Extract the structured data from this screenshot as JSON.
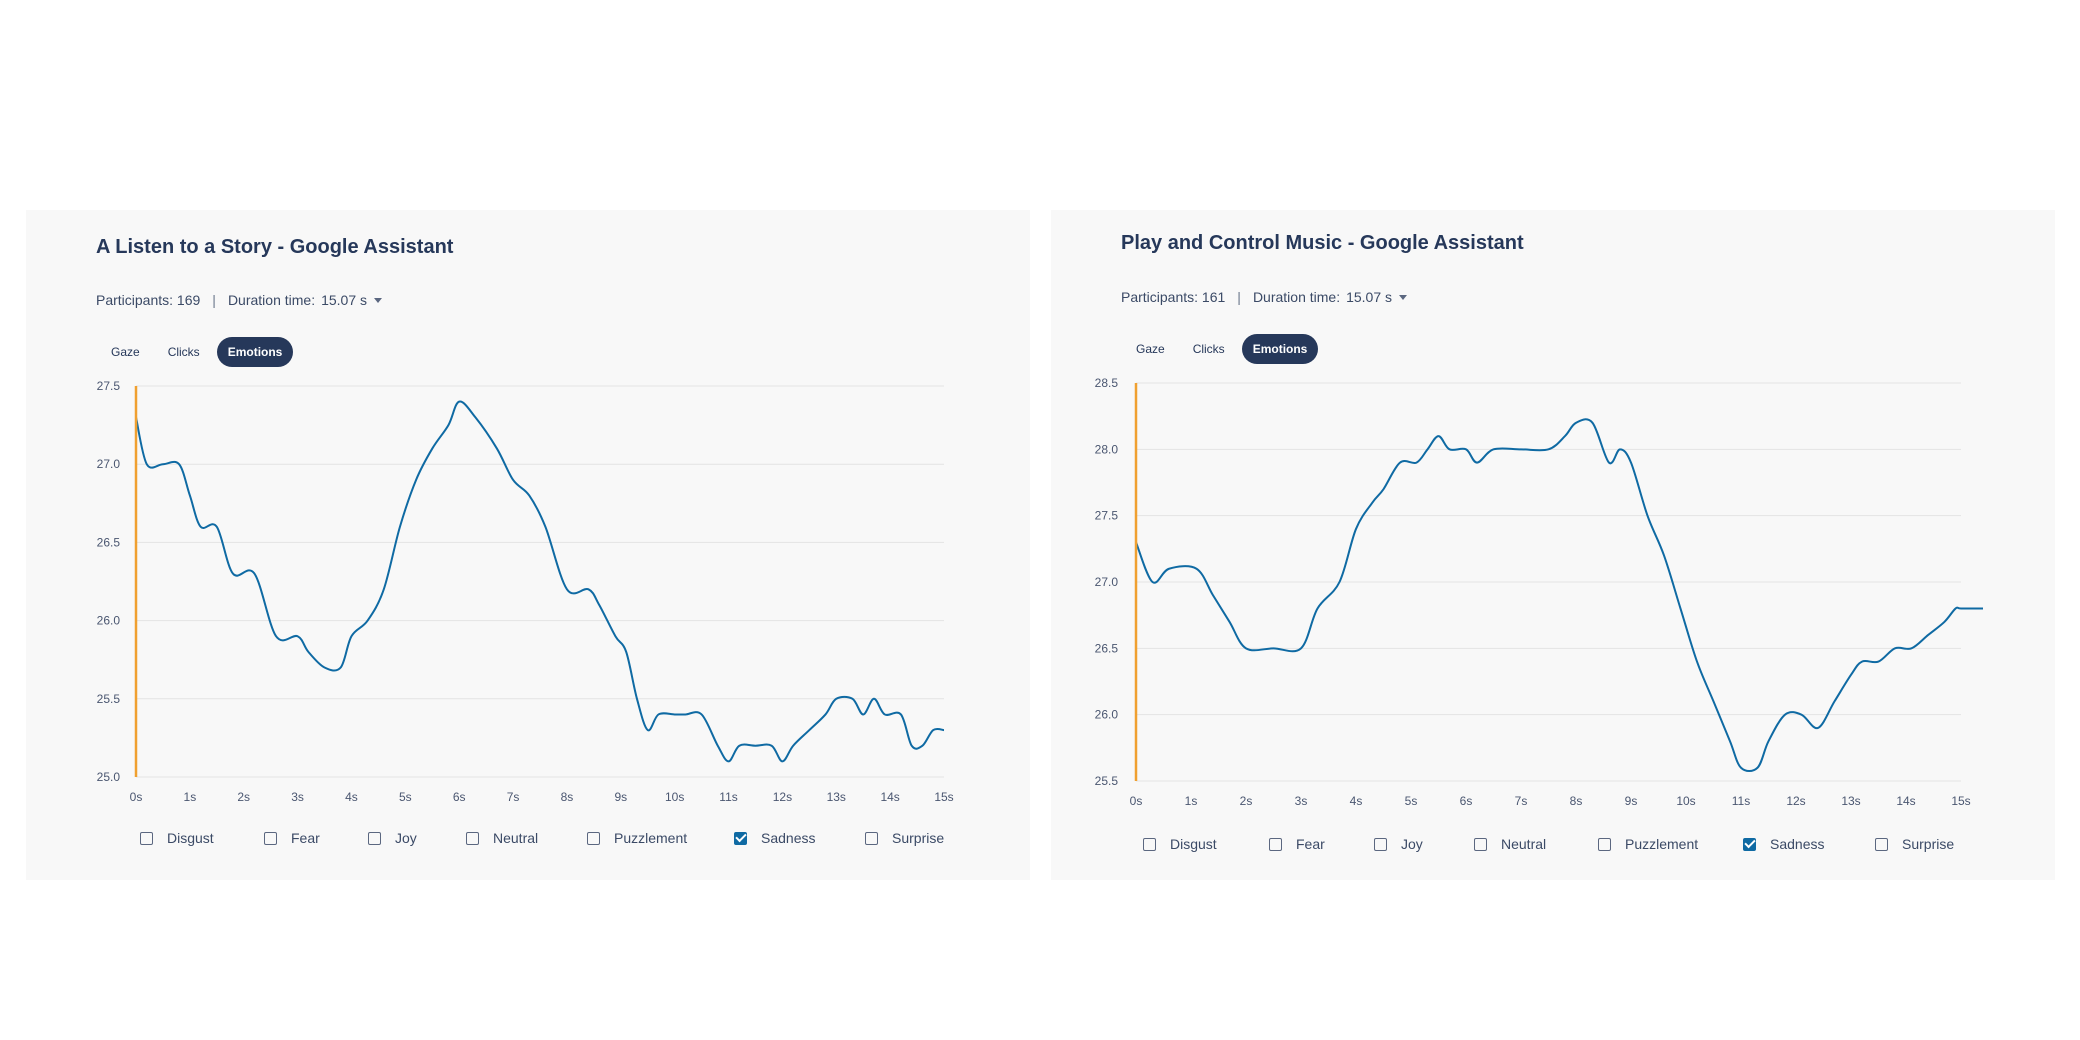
{
  "colors": {
    "line": "#0f6aa3",
    "marker": "#f0a030",
    "active_tab_bg": "#26385a",
    "grid": "#e3e3e3"
  },
  "panels": [
    {
      "title": "A Listen to a Story - Google Assistant",
      "participants": "Participants: 169",
      "separator": "|",
      "duration_label": "Duration time:",
      "duration_value": "15.07 s",
      "tabs": [
        {
          "label": "Gaze"
        },
        {
          "label": "Clicks"
        },
        {
          "label": "Emotions",
          "active": true
        }
      ],
      "legend": [
        {
          "label": "Disgust",
          "checked": false
        },
        {
          "label": "Fear",
          "checked": false
        },
        {
          "label": "Joy",
          "checked": false
        },
        {
          "label": "Neutral",
          "checked": false
        },
        {
          "label": "Puzzlement",
          "checked": false
        },
        {
          "label": "Sadness",
          "checked": true
        },
        {
          "label": "Surprise",
          "checked": false
        }
      ]
    },
    {
      "title": "Play and Control Music - Google Assistant",
      "participants": "Participants: 161",
      "separator": "|",
      "duration_label": "Duration time:",
      "duration_value": "15.07 s",
      "tabs": [
        {
          "label": "Gaze"
        },
        {
          "label": "Clicks"
        },
        {
          "label": "Emotions",
          "active": true
        }
      ],
      "legend": [
        {
          "label": "Disgust",
          "checked": false
        },
        {
          "label": "Fear",
          "checked": false
        },
        {
          "label": "Joy",
          "checked": false
        },
        {
          "label": "Neutral",
          "checked": false
        },
        {
          "label": "Puzzlement",
          "checked": false
        },
        {
          "label": "Sadness",
          "checked": true
        },
        {
          "label": "Surprise",
          "checked": false
        }
      ]
    }
  ],
  "chart_data": [
    {
      "type": "line",
      "series_label": "Sadness",
      "xlim": [
        0,
        15
      ],
      "ylim": [
        25.0,
        27.5
      ],
      "x_ticks": [
        "0s",
        "1s",
        "2s",
        "3s",
        "4s",
        "5s",
        "6s",
        "7s",
        "8s",
        "9s",
        "10s",
        "11s",
        "12s",
        "13s",
        "14s",
        "15s"
      ],
      "y_ticks": [
        "25.0",
        "25.5",
        "26.0",
        "26.5",
        "27.0",
        "27.5"
      ],
      "marker_x": 0,
      "grid": true,
      "points": [
        [
          0,
          27.3
        ],
        [
          0.2,
          27.0
        ],
        [
          0.5,
          27.0
        ],
        [
          0.8,
          27.0
        ],
        [
          1.0,
          26.8
        ],
        [
          1.2,
          26.6
        ],
        [
          1.5,
          26.6
        ],
        [
          1.8,
          26.3
        ],
        [
          2.2,
          26.3
        ],
        [
          2.6,
          25.9
        ],
        [
          3.0,
          25.9
        ],
        [
          3.2,
          25.8
        ],
        [
          3.5,
          25.7
        ],
        [
          3.8,
          25.7
        ],
        [
          4.0,
          25.9
        ],
        [
          4.3,
          26.0
        ],
        [
          4.6,
          26.2
        ],
        [
          4.9,
          26.6
        ],
        [
          5.2,
          26.9
        ],
        [
          5.5,
          27.1
        ],
        [
          5.8,
          27.25
        ],
        [
          6.0,
          27.4
        ],
        [
          6.3,
          27.3
        ],
        [
          6.7,
          27.1
        ],
        [
          7.0,
          26.9
        ],
        [
          7.3,
          26.8
        ],
        [
          7.6,
          26.6
        ],
        [
          8.0,
          26.2
        ],
        [
          8.4,
          26.2
        ],
        [
          8.6,
          26.1
        ],
        [
          8.9,
          25.9
        ],
        [
          9.1,
          25.8
        ],
        [
          9.3,
          25.5
        ],
        [
          9.5,
          25.3
        ],
        [
          9.7,
          25.4
        ],
        [
          10.0,
          25.4
        ],
        [
          10.2,
          25.4
        ],
        [
          10.5,
          25.4
        ],
        [
          10.8,
          25.2
        ],
        [
          11.0,
          25.1
        ],
        [
          11.2,
          25.2
        ],
        [
          11.5,
          25.2
        ],
        [
          11.8,
          25.2
        ],
        [
          12.0,
          25.1
        ],
        [
          12.2,
          25.2
        ],
        [
          12.5,
          25.3
        ],
        [
          12.8,
          25.4
        ],
        [
          13.0,
          25.5
        ],
        [
          13.3,
          25.5
        ],
        [
          13.5,
          25.4
        ],
        [
          13.7,
          25.5
        ],
        [
          13.9,
          25.4
        ],
        [
          14.2,
          25.4
        ],
        [
          14.4,
          25.2
        ],
        [
          14.6,
          25.2
        ],
        [
          14.8,
          25.3
        ],
        [
          15.0,
          25.3
        ]
      ]
    },
    {
      "type": "line",
      "series_label": "Sadness",
      "xlim": [
        0,
        15
      ],
      "ylim": [
        25.5,
        28.5
      ],
      "x_ticks": [
        "0s",
        "1s",
        "2s",
        "3s",
        "4s",
        "5s",
        "6s",
        "7s",
        "8s",
        "9s",
        "10s",
        "11s",
        "12s",
        "13s",
        "14s",
        "15s"
      ],
      "y_ticks": [
        "25.5",
        "26.0",
        "26.5",
        "27.0",
        "27.5",
        "28.0",
        "28.5"
      ],
      "marker_x": 0,
      "grid": true,
      "points": [
        [
          0,
          27.3
        ],
        [
          0.3,
          27.0
        ],
        [
          0.6,
          27.1
        ],
        [
          1.1,
          27.1
        ],
        [
          1.4,
          26.9
        ],
        [
          1.7,
          26.7
        ],
        [
          2.0,
          26.5
        ],
        [
          2.5,
          26.5
        ],
        [
          3.0,
          26.5
        ],
        [
          3.3,
          26.8
        ],
        [
          3.7,
          27.0
        ],
        [
          4.0,
          27.4
        ],
        [
          4.3,
          27.6
        ],
        [
          4.5,
          27.7
        ],
        [
          4.8,
          27.9
        ],
        [
          5.1,
          27.9
        ],
        [
          5.3,
          28.0
        ],
        [
          5.5,
          28.1
        ],
        [
          5.7,
          28.0
        ],
        [
          6.0,
          28.0
        ],
        [
          6.2,
          27.9
        ],
        [
          6.5,
          28.0
        ],
        [
          7.0,
          28.0
        ],
        [
          7.5,
          28.0
        ],
        [
          7.8,
          28.1
        ],
        [
          8.0,
          28.2
        ],
        [
          8.3,
          28.2
        ],
        [
          8.6,
          27.9
        ],
        [
          8.8,
          28.0
        ],
        [
          9.0,
          27.9
        ],
        [
          9.3,
          27.5
        ],
        [
          9.6,
          27.2
        ],
        [
          9.9,
          26.8
        ],
        [
          10.2,
          26.4
        ],
        [
          10.5,
          26.1
        ],
        [
          10.8,
          25.8
        ],
        [
          11.0,
          25.6
        ],
        [
          11.3,
          25.6
        ],
        [
          11.5,
          25.8
        ],
        [
          11.8,
          26.0
        ],
        [
          12.1,
          26.0
        ],
        [
          12.4,
          25.9
        ],
        [
          12.7,
          26.1
        ],
        [
          13.0,
          26.3
        ],
        [
          13.2,
          26.4
        ],
        [
          13.5,
          26.4
        ],
        [
          13.8,
          26.5
        ],
        [
          14.1,
          26.5
        ],
        [
          14.4,
          26.6
        ],
        [
          14.7,
          26.7
        ],
        [
          14.9,
          26.8
        ],
        [
          15.0,
          26.8
        ],
        [
          15.4,
          26.8
        ]
      ]
    }
  ]
}
